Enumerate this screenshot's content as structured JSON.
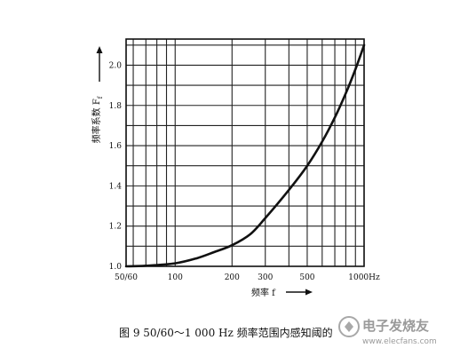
{
  "chart_data": {
    "type": "line",
    "x_scale": "log",
    "x": [
      55,
      70,
      100,
      130,
      160,
      200,
      250,
      300,
      400,
      500,
      600,
      700,
      800,
      900,
      1000
    ],
    "y": [
      1.0,
      1.003,
      1.015,
      1.04,
      1.07,
      1.105,
      1.16,
      1.24,
      1.38,
      1.5,
      1.62,
      1.74,
      1.86,
      1.98,
      2.1
    ],
    "xlim": [
      55,
      1000
    ],
    "ylim": [
      1.0,
      2.13
    ],
    "x_grid": [
      55,
      60,
      70,
      80,
      90,
      100,
      200,
      300,
      400,
      500,
      600,
      700,
      800,
      900,
      1000
    ],
    "y_grid": [
      1.0,
      1.1,
      1.2,
      1.3,
      1.4,
      1.5,
      1.6,
      1.7,
      1.8,
      1.9,
      2.0,
      2.1
    ],
    "x_ticks": [
      {
        "value": 55,
        "label": "50/60"
      },
      {
        "value": 100,
        "label": "100"
      },
      {
        "value": 200,
        "label": "200"
      },
      {
        "value": 300,
        "label": "300"
      },
      {
        "value": 500,
        "label": "500"
      },
      {
        "value": 1000,
        "label": "1000Hz"
      }
    ],
    "y_ticks": [
      {
        "value": 1.0,
        "label": "1.0"
      },
      {
        "value": 1.2,
        "label": "1.2"
      },
      {
        "value": 1.4,
        "label": "1.4"
      },
      {
        "value": 1.6,
        "label": "1.6"
      },
      {
        "value": 1.8,
        "label": "1.8"
      },
      {
        "value": 2.0,
        "label": "2.0"
      }
    ],
    "xlabel": "频率 f",
    "ylabel": "频率系数 F",
    "ylabel_subscript": "f",
    "caption": "图 9   50/60～1 000 Hz 频率范围内感知阈的",
    "line_color": "#111111",
    "grid_color": "#222222"
  },
  "watermark": {
    "brand": "电子发烧友",
    "url": "www.elecfans.com"
  }
}
